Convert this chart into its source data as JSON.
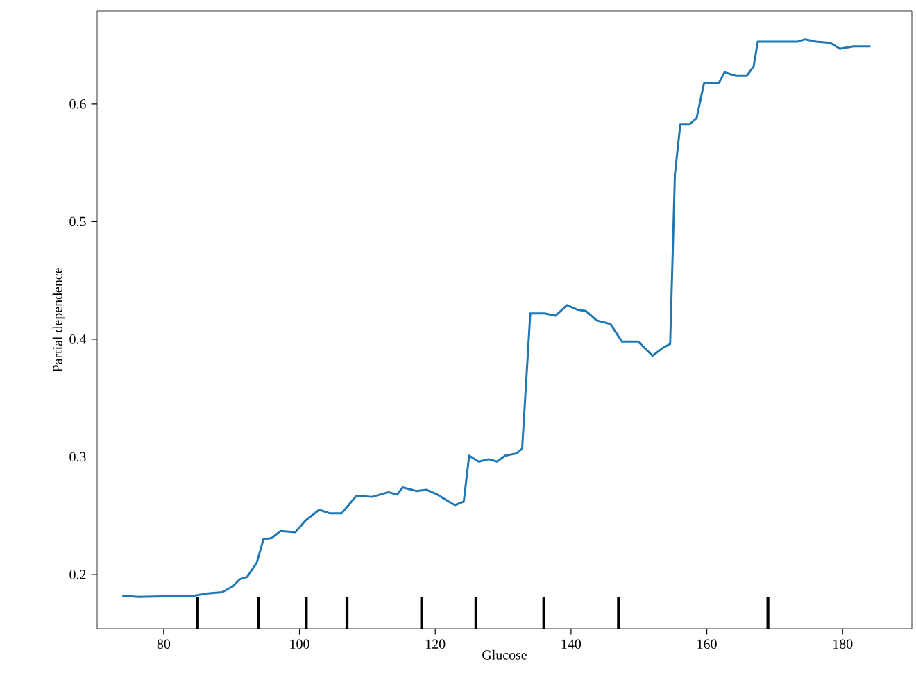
{
  "chart_data": {
    "type": "line",
    "xlabel": "Glucose",
    "ylabel": "Partial dependence",
    "x": [
      73.9,
      76.3,
      84.5,
      86.5,
      88.6,
      90.2,
      91.2,
      92.3,
      93.7,
      94.7,
      95.9,
      97.2,
      99.4,
      100.9,
      102.9,
      104.5,
      106.2,
      108.4,
      110.7,
      113.1,
      114.4,
      115.2,
      117.2,
      118.7,
      120.3,
      121.7,
      122.9,
      124.2,
      125,
      126.4,
      127.9,
      129.1,
      130.3,
      132,
      132.8,
      134,
      136.1,
      137.7,
      139.4,
      141,
      142.2,
      143.8,
      145.8,
      147.5,
      149.9,
      152,
      153.6,
      154.6,
      155.3,
      156.1,
      157.5,
      158.5,
      159.6,
      161.8,
      162.6,
      164.3,
      165.9,
      166.9,
      167.5,
      170.4,
      173.3,
      174.5,
      176.1,
      178.2,
      179.6,
      181.6,
      183.1,
      184.1
    ],
    "series": [
      {
        "color": "#1f77b4",
        "values": [
          0.182,
          0.181,
          0.182,
          0.184,
          0.185,
          0.19,
          0.196,
          0.198,
          0.21,
          0.23,
          0.231,
          0.237,
          0.236,
          0.246,
          0.255,
          0.252,
          0.252,
          0.267,
          0.266,
          0.27,
          0.268,
          0.274,
          0.271,
          0.272,
          0.268,
          0.263,
          0.259,
          0.262,
          0.301,
          0.296,
          0.298,
          0.296,
          0.301,
          0.303,
          0.307,
          0.422,
          0.422,
          0.42,
          0.429,
          0.425,
          0.424,
          0.416,
          0.413,
          0.398,
          0.398,
          0.386,
          0.393,
          0.396,
          0.54,
          0.583,
          0.583,
          0.588,
          0.618,
          0.618,
          0.627,
          0.624,
          0.624,
          0.632,
          0.653,
          0.653,
          0.653,
          0.655,
          0.653,
          0.652,
          0.647,
          0.649,
          0.649,
          0.649
        ]
      },
      {
        "type": "bar",
        "color": "#000000",
        "x": [
          85,
          94,
          101,
          107,
          118,
          126,
          136,
          147,
          169
        ],
        "base": [
          0.154,
          0.154,
          0.154,
          0.154,
          0.154,
          0.154,
          0.154,
          0.154,
          0.154
        ],
        "values": [
          0.027,
          0.027,
          0.027,
          0.027,
          0.027,
          0.027,
          0.027,
          0.027,
          0.027
        ]
      }
    ],
    "xlim": [
      70.2,
      190.2
    ],
    "ylim": [
      0.154,
      0.679
    ],
    "xticks": [
      80,
      100,
      120,
      140,
      160,
      180
    ],
    "yticks": [
      0.2,
      0.3,
      0.4,
      0.5,
      0.6
    ],
    "grid": false
  }
}
